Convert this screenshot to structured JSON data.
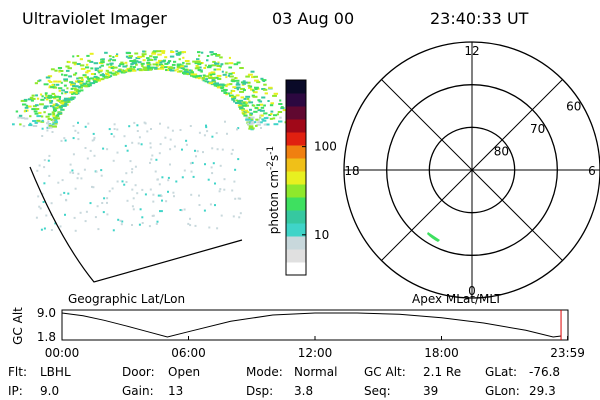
{
  "header": {
    "title": "Ultraviolet Imager",
    "date": "03 Aug 00",
    "time": "23:40:33 UT"
  },
  "image_panel": {
    "label": "Geographic Lat/Lon"
  },
  "colorbar": {
    "label_parts": [
      "photon cm",
      "-2",
      "s",
      "-1"
    ],
    "scale": "log",
    "lim": [
      3.5,
      570
    ],
    "ticks": [
      10,
      100
    ],
    "colors": [
      "#ffffff",
      "#e0e0e0",
      "#c8d8dc",
      "#3fd4c8",
      "#36c8a0",
      "#3ee060",
      "#8fe82c",
      "#e8f020",
      "#f0c018",
      "#f08010",
      "#e02010",
      "#a00818",
      "#600830",
      "#2c0840",
      "#0a0a28"
    ]
  },
  "polar": {
    "label": "Apex MLat/MLT",
    "lat_lim": [
      90,
      60
    ],
    "lat_rings": [
      60,
      70,
      80
    ],
    "mlt_labels": [
      {
        "value": 12,
        "label": "12"
      },
      {
        "value": 18,
        "label": "18"
      },
      {
        "value": 6,
        "label": "6"
      },
      {
        "value": 0,
        "label": "0"
      }
    ]
  },
  "timeline": {
    "ylabel": "GC Alt",
    "xlim": [
      0,
      24
    ],
    "ylim": [
      1.8,
      9.0
    ],
    "yticks": [
      {
        "value": 9.0,
        "label": "9.0"
      },
      1.8
    ],
    "xticks": [
      {
        "value": 0,
        "label": "00:00"
      },
      {
        "value": 6,
        "label": "06:00"
      },
      {
        "value": 12,
        "label": "12:00"
      },
      {
        "value": 18,
        "label": "18:00"
      },
      {
        "value": 23.98,
        "label": "23:59"
      }
    ],
    "x": [
      0,
      1,
      2,
      3,
      4,
      5,
      6,
      8,
      10,
      12,
      14,
      16,
      18,
      20,
      22,
      23.3,
      23.67
    ],
    "values": [
      9.0,
      8.2,
      6.8,
      5.2,
      3.5,
      1.8,
      3.4,
      6.5,
      8.4,
      9.0,
      9.0,
      8.6,
      7.6,
      6.0,
      3.8,
      1.8,
      2.1
    ]
  },
  "footer": {
    "rows": [
      [
        [
          "Flt:",
          "LBHL"
        ],
        [
          "Door:",
          "Open"
        ],
        [
          "Mode:",
          "Normal"
        ],
        [
          "GC Alt:",
          "2.1 Re"
        ],
        [
          "GLat:",
          "-76.8"
        ]
      ],
      [
        [
          "IP:",
          "9.0"
        ],
        [
          "Gain:",
          "13"
        ],
        [
          "Dsp:",
          "3.8"
        ],
        [
          "Seq:",
          "39"
        ],
        [
          "GLon:",
          "29.3"
        ]
      ]
    ]
  }
}
